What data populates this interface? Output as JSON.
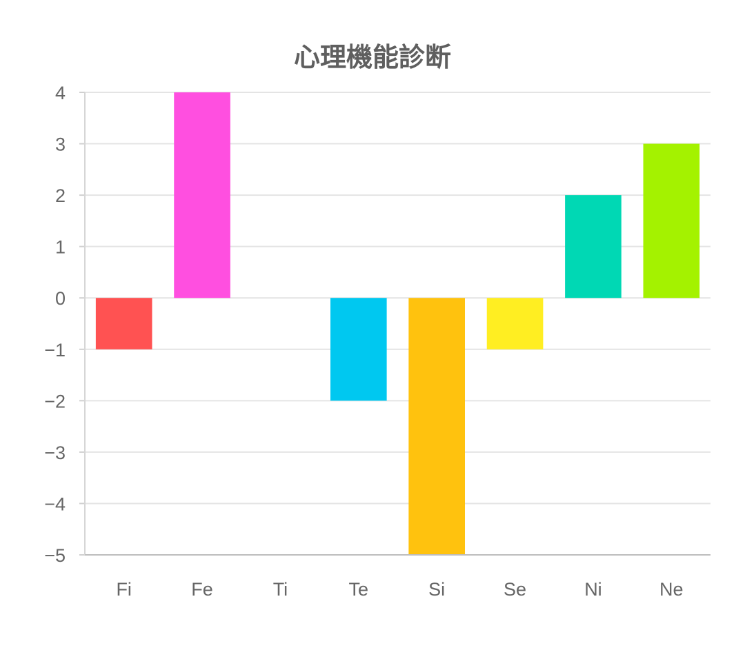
{
  "chart_data": {
    "type": "bar",
    "title": "心理機能診断",
    "xlabel": "",
    "ylabel": "",
    "categories": [
      "Fi",
      "Fe",
      "Ti",
      "Te",
      "Si",
      "Se",
      "Ni",
      "Ne"
    ],
    "values": [
      -1,
      4,
      0,
      -2,
      -5,
      -1,
      2,
      3
    ],
    "colors": [
      "#ff5252",
      "#ff4fe0",
      "#b98cff",
      "#00c8f0",
      "#ffc20e",
      "#ffee22",
      "#00d8b4",
      "#a4f200"
    ],
    "ylim": [
      -5,
      4
    ],
    "yticks": [
      4,
      3,
      2,
      1,
      0,
      -1,
      -2,
      -3,
      -4,
      -5
    ],
    "grid": true,
    "legend": "none"
  }
}
